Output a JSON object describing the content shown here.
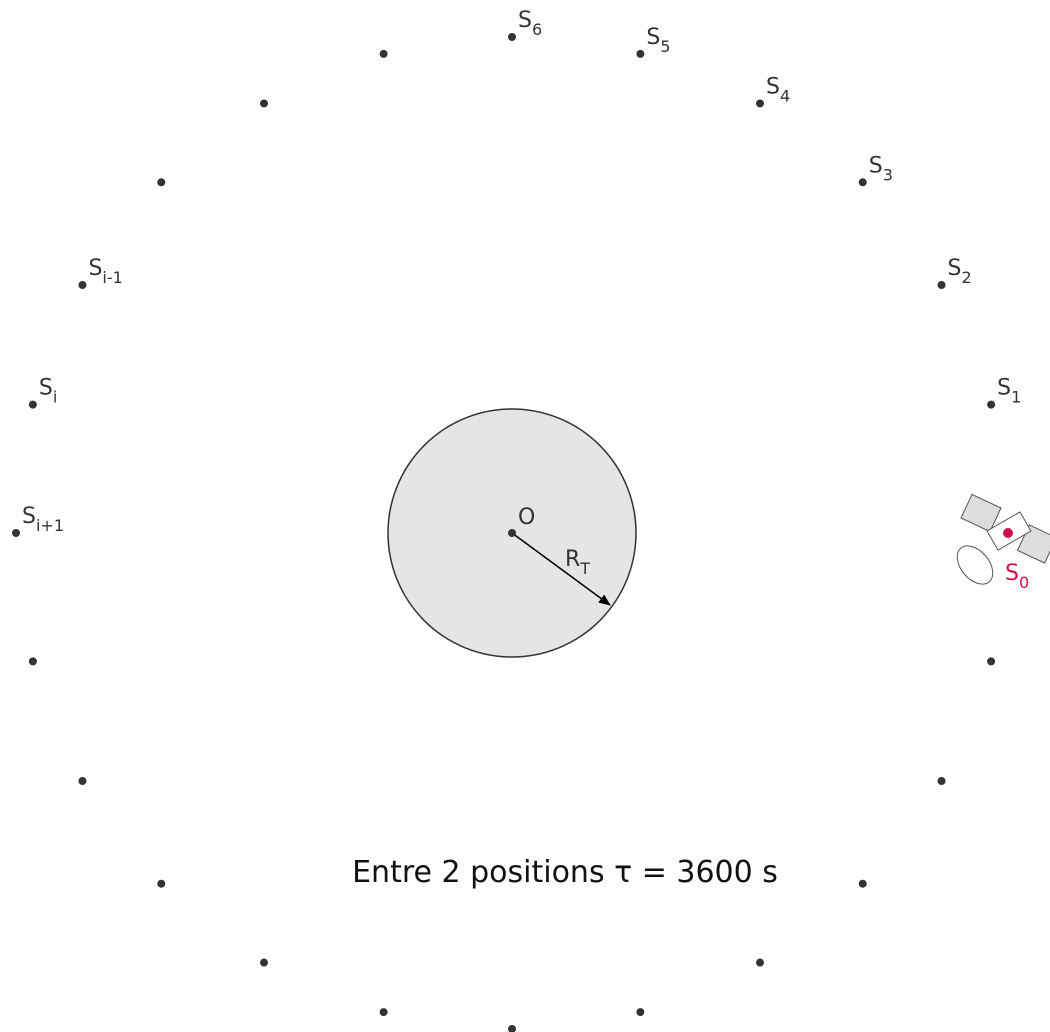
{
  "center_label": "O",
  "radius_label": {
    "main": "R",
    "sub": "T"
  },
  "positions": [
    {
      "main": "S",
      "sub": "0"
    },
    {
      "main": "S",
      "sub": "1"
    },
    {
      "main": "S",
      "sub": "2"
    },
    {
      "main": "S",
      "sub": "3"
    },
    {
      "main": "S",
      "sub": "4"
    },
    {
      "main": "S",
      "sub": "5"
    },
    {
      "main": "S",
      "sub": "6"
    }
  ],
  "general_positions": [
    {
      "main": "S",
      "sub": "i-1"
    },
    {
      "main": "S",
      "sub": "i"
    },
    {
      "main": "S",
      "sub": "i+1"
    }
  ],
  "caption": "Entre 2 positions τ = 3600 s"
}
